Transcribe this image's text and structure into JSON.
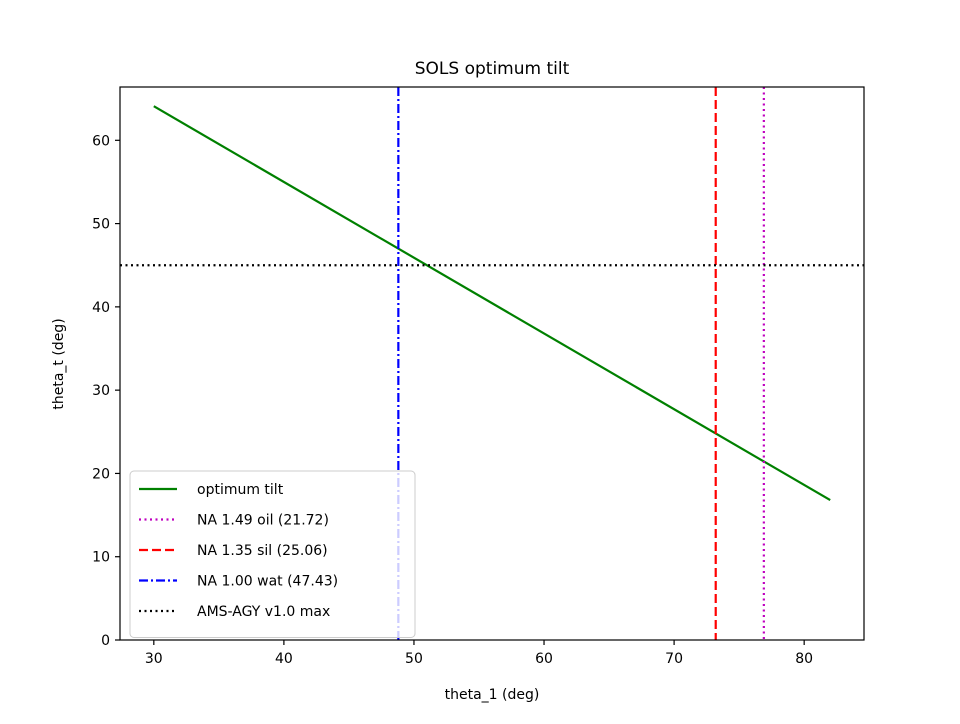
{
  "chart_data": {
    "type": "line",
    "title": "SOLS optimum tilt",
    "xlabel": "theta_1 (deg)",
    "ylabel": "theta_t (deg)",
    "xlim": [
      27.4,
      84.6
    ],
    "ylim": [
      0,
      66.4
    ],
    "xticks": [
      30,
      40,
      50,
      60,
      70,
      80
    ],
    "yticks": [
      0,
      10,
      20,
      30,
      40,
      50,
      60
    ],
    "grid": false,
    "legend_position": "lower-left",
    "series": [
      {
        "name": "optimum tilt",
        "kind": "line",
        "style": "solid",
        "color": "#008000",
        "x": [
          30,
          82
        ],
        "y": [
          64.1,
          16.8
        ]
      },
      {
        "name": "NA 1.49 oil (21.72)",
        "kind": "vline",
        "style": "dotted",
        "color": "#bf00bf",
        "x": 76.9
      },
      {
        "name": "NA 1.35 sil (25.06)",
        "kind": "vline",
        "style": "dashed",
        "color": "#ff0000",
        "x": 73.2
      },
      {
        "name": "NA 1.00 wat (47.43)",
        "kind": "vline",
        "style": "dashdot",
        "color": "#0000ff",
        "x": 48.8
      },
      {
        "name": "AMS-AGY v1.0 max",
        "kind": "hline",
        "style": "dotted",
        "color": "#000000",
        "y": 45
      }
    ]
  }
}
